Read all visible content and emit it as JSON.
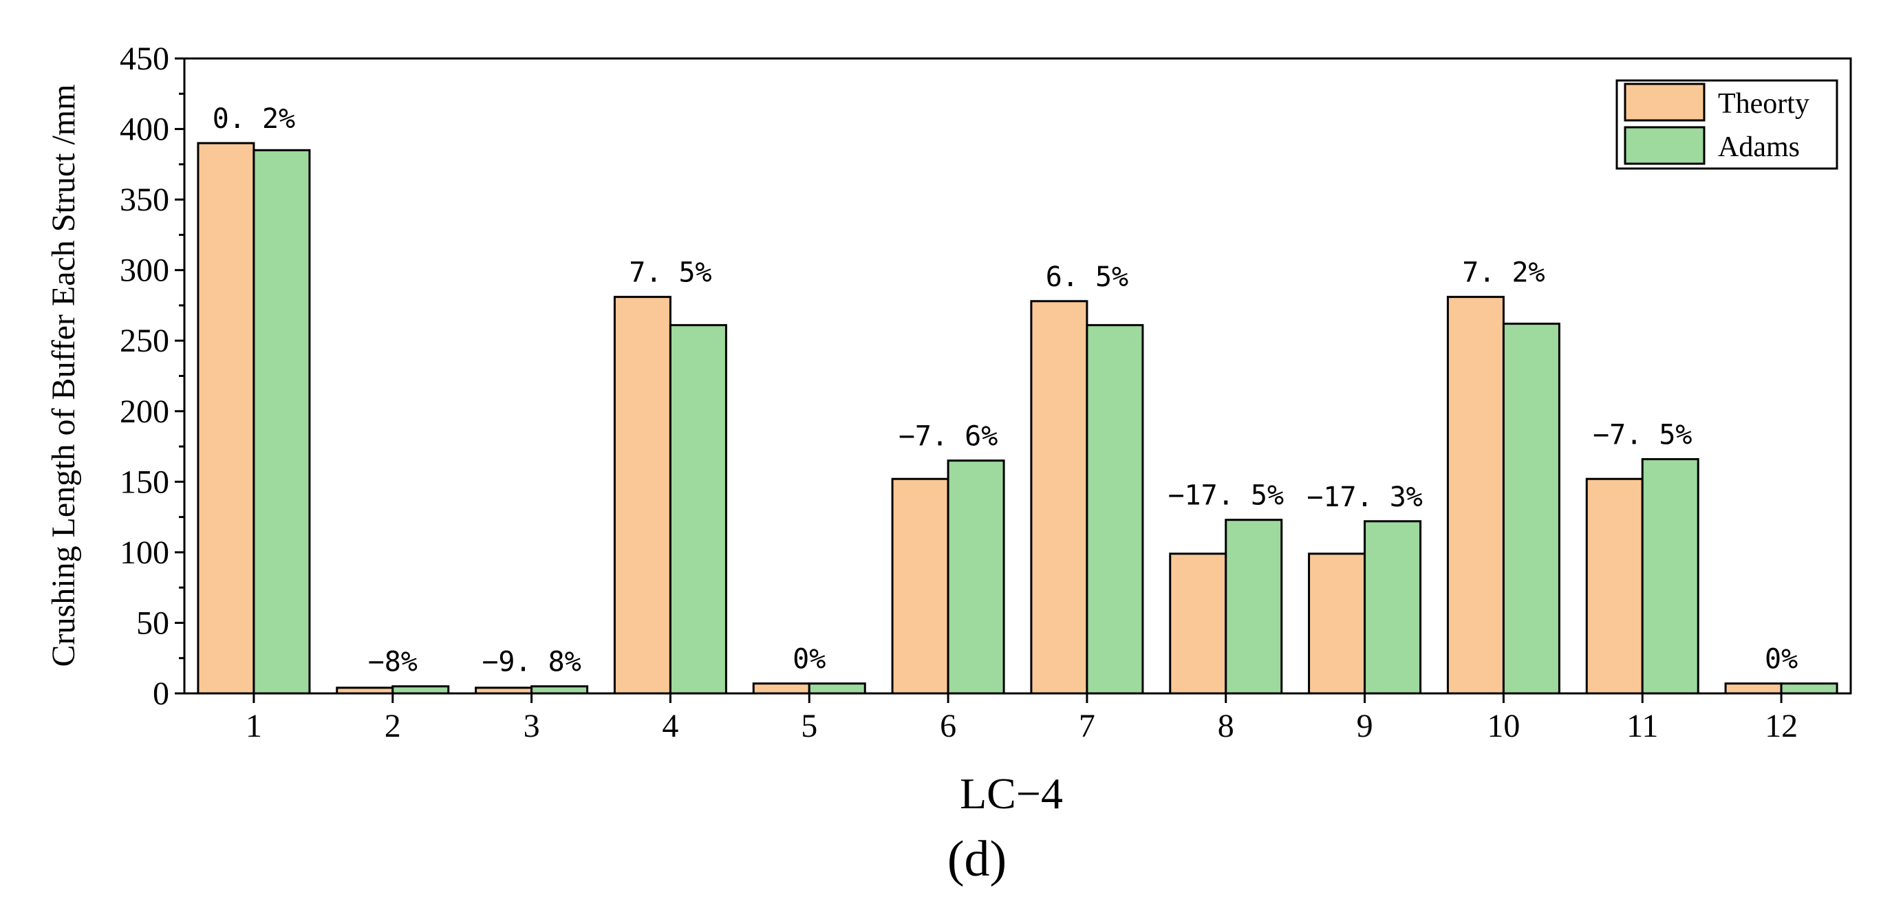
{
  "chart_data": {
    "type": "bar",
    "xlabel": "LC−4",
    "ylabel": "Crushing Length of Buffer Each Struct /mm",
    "panel_label": "(d)",
    "categories": [
      "1",
      "2",
      "3",
      "4",
      "5",
      "6",
      "7",
      "8",
      "9",
      "10",
      "11",
      "12"
    ],
    "ylim": [
      0,
      450
    ],
    "yticks": [
      "0",
      "50",
      "100",
      "150",
      "200",
      "250",
      "300",
      "350",
      "400",
      "450"
    ],
    "grid": false,
    "legend_position": "top-right",
    "series": [
      {
        "name": "Theorty",
        "color": "#FAC896",
        "values": [
          390,
          4,
          4,
          281,
          7,
          152,
          278,
          99,
          99,
          281,
          152,
          7
        ]
      },
      {
        "name": "Adams",
        "color": "#9ED99E",
        "values": [
          385,
          5,
          5,
          261,
          7,
          165,
          261,
          123,
          122,
          262,
          166,
          7
        ]
      }
    ],
    "annotations": [
      "0. 2%",
      "−8%",
      "−9. 8%",
      "7. 5%",
      "0%",
      "−7. 6%",
      "6. 5%",
      "−17. 5%",
      "−17. 3%",
      "7. 2%",
      "−7. 5%",
      "0%"
    ]
  }
}
